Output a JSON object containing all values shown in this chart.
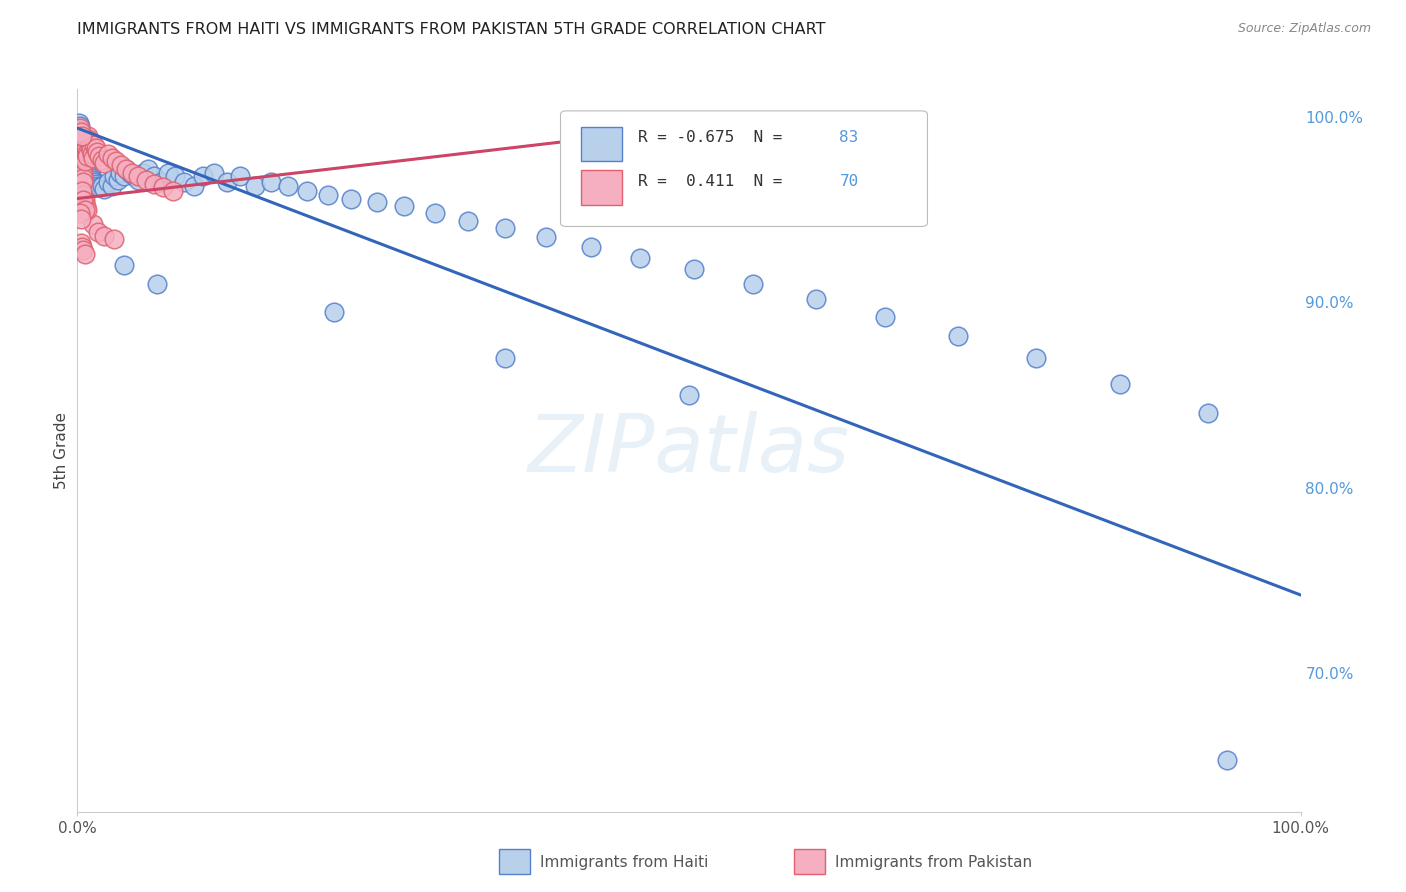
{
  "title": "IMMIGRANTS FROM HAITI VS IMMIGRANTS FROM PAKISTAN 5TH GRADE CORRELATION CHART",
  "source": "Source: ZipAtlas.com",
  "ylabel": "5th Grade",
  "xlim": [
    0.0,
    1.0
  ],
  "ylim": [
    0.625,
    1.015
  ],
  "yticks": [
    0.7,
    0.8,
    0.9,
    1.0
  ],
  "ytick_labels": [
    "70.0%",
    "80.0%",
    "90.0%",
    "100.0%"
  ],
  "xtick_labels_pos": [
    0.0,
    1.0
  ],
  "xtick_labels": [
    "0.0%",
    "100.0%"
  ],
  "legend_r_haiti": "-0.675",
  "legend_n_haiti": "83",
  "legend_r_pakistan": "0.411",
  "legend_n_pakistan": "70",
  "haiti_face_color": "#b8d0ea",
  "pakistan_face_color": "#f5afc0",
  "haiti_edge_color": "#5580cc",
  "pakistan_edge_color": "#e06070",
  "haiti_line_color": "#3366bb",
  "pakistan_line_color": "#cc4466",
  "watermark_text": "ZIPatlas",
  "background_color": "#ffffff",
  "haiti_x": [
    0.001,
    0.002,
    0.002,
    0.003,
    0.003,
    0.003,
    0.004,
    0.004,
    0.004,
    0.005,
    0.005,
    0.005,
    0.006,
    0.006,
    0.006,
    0.007,
    0.007,
    0.007,
    0.008,
    0.008,
    0.009,
    0.009,
    0.01,
    0.01,
    0.011,
    0.012,
    0.013,
    0.014,
    0.015,
    0.016,
    0.018,
    0.02,
    0.022,
    0.025,
    0.028,
    0.03,
    0.033,
    0.035,
    0.038,
    0.04,
    0.043,
    0.046,
    0.05,
    0.054,
    0.058,
    0.063,
    0.068,
    0.074,
    0.08,
    0.087,
    0.095,
    0.103,
    0.112,
    0.122,
    0.133,
    0.145,
    0.158,
    0.172,
    0.188,
    0.205,
    0.224,
    0.245,
    0.267,
    0.292,
    0.319,
    0.35,
    0.383,
    0.42,
    0.46,
    0.504,
    0.552,
    0.604,
    0.66,
    0.72,
    0.784,
    0.852,
    0.924,
    0.038,
    0.065,
    0.21,
    0.35,
    0.5,
    0.94
  ],
  "haiti_y": [
    0.997,
    0.995,
    0.993,
    0.992,
    0.99,
    0.988,
    0.987,
    0.986,
    0.984,
    0.983,
    0.982,
    0.981,
    0.979,
    0.978,
    0.977,
    0.977,
    0.976,
    0.975,
    0.974,
    0.973,
    0.972,
    0.971,
    0.97,
    0.969,
    0.968,
    0.967,
    0.966,
    0.965,
    0.964,
    0.963,
    0.962,
    0.963,
    0.961,
    0.965,
    0.963,
    0.968,
    0.966,
    0.97,
    0.968,
    0.972,
    0.97,
    0.968,
    0.966,
    0.97,
    0.972,
    0.968,
    0.965,
    0.97,
    0.968,
    0.965,
    0.963,
    0.968,
    0.97,
    0.965,
    0.968,
    0.963,
    0.965,
    0.963,
    0.96,
    0.958,
    0.956,
    0.954,
    0.952,
    0.948,
    0.944,
    0.94,
    0.935,
    0.93,
    0.924,
    0.918,
    0.91,
    0.902,
    0.892,
    0.882,
    0.87,
    0.856,
    0.84,
    0.92,
    0.91,
    0.895,
    0.87,
    0.85,
    0.653
  ],
  "pakistan_x": [
    0.001,
    0.001,
    0.001,
    0.002,
    0.002,
    0.002,
    0.002,
    0.003,
    0.003,
    0.003,
    0.003,
    0.004,
    0.004,
    0.004,
    0.004,
    0.005,
    0.005,
    0.005,
    0.006,
    0.006,
    0.006,
    0.007,
    0.007,
    0.007,
    0.008,
    0.008,
    0.009,
    0.009,
    0.01,
    0.01,
    0.011,
    0.012,
    0.013,
    0.014,
    0.015,
    0.016,
    0.018,
    0.02,
    0.022,
    0.025,
    0.028,
    0.032,
    0.036,
    0.04,
    0.045,
    0.05,
    0.056,
    0.063,
    0.07,
    0.078,
    0.013,
    0.017,
    0.022,
    0.03,
    0.005,
    0.006,
    0.007,
    0.008,
    0.002,
    0.003,
    0.004,
    0.004,
    0.005,
    0.006,
    0.003,
    0.004,
    0.005,
    0.006,
    0.002,
    0.003
  ],
  "pakistan_y": [
    0.993,
    0.991,
    0.988,
    0.986,
    0.984,
    0.982,
    0.98,
    0.978,
    0.976,
    0.974,
    0.972,
    0.97,
    0.975,
    0.973,
    0.971,
    0.969,
    0.967,
    0.965,
    0.98,
    0.978,
    0.976,
    0.987,
    0.985,
    0.983,
    0.981,
    0.979,
    0.99,
    0.988,
    0.986,
    0.984,
    0.982,
    0.98,
    0.978,
    0.985,
    0.983,
    0.981,
    0.979,
    0.977,
    0.975,
    0.98,
    0.978,
    0.976,
    0.974,
    0.972,
    0.97,
    0.968,
    0.966,
    0.964,
    0.962,
    0.96,
    0.942,
    0.938,
    0.936,
    0.934,
    0.958,
    0.955,
    0.952,
    0.95,
    0.994,
    0.992,
    0.99,
    0.96,
    0.955,
    0.95,
    0.932,
    0.93,
    0.928,
    0.926,
    0.948,
    0.945
  ],
  "haiti_trend_x": [
    0.0,
    1.0
  ],
  "haiti_trend_y": [
    0.994,
    0.742
  ],
  "pakistan_trend_x": [
    0.0,
    0.48
  ],
  "pakistan_trend_y": [
    0.956,
    0.993
  ]
}
